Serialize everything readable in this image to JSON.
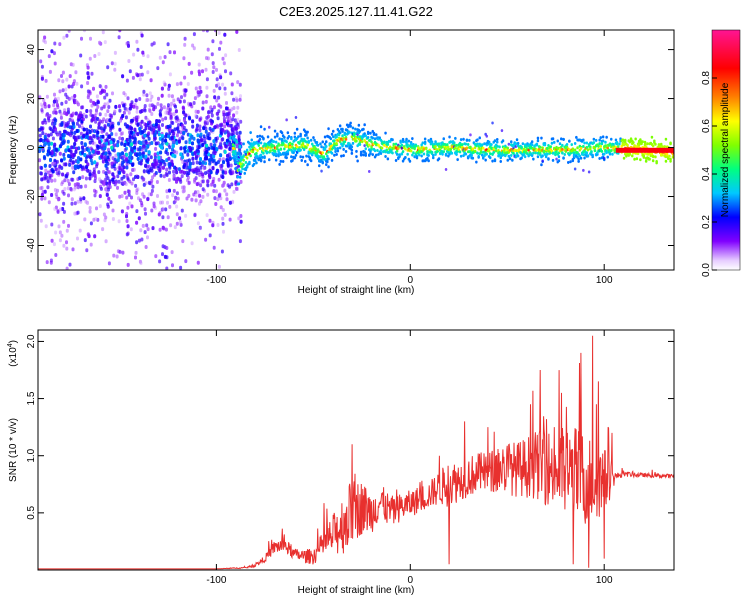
{
  "chart_data": [
    {
      "type": "heatmap",
      "title": "C2E3.2025.127.11.41.G22",
      "xlabel": "Height of straight line (km)",
      "ylabel": "Frequency (Hz)",
      "xlim": [
        -192,
        136
      ],
      "ylim": [
        -50,
        48
      ],
      "xticks": [
        -100,
        0,
        100
      ],
      "yticks": [
        -40,
        -20,
        0,
        20,
        40
      ],
      "xtick_labels": [
        "-100",
        "0",
        "100"
      ],
      "ytick_labels": [
        "-40",
        "-20",
        "0",
        "20",
        "40"
      ],
      "colorbar": {
        "label": "Normalized spectral amplitude",
        "range": [
          0,
          1
        ],
        "ticks": [
          0,
          0.2,
          0.4,
          0.6,
          0.8
        ],
        "tick_labels": [
          "0.0",
          "0.2",
          "0.4",
          "0.6",
          "0.8"
        ],
        "colormap": [
          "#ffffff",
          "#8000ff",
          "#0000ff",
          "#00c8ff",
          "#00ff80",
          "#80ff00",
          "#ffff00",
          "#ff8000",
          "#ff0000",
          "#ff1493"
        ]
      },
      "description_points": {
        "noise_region_x": [
          -192,
          -88
        ],
        "signal_track": [
          {
            "x": -90,
            "y": -9
          },
          {
            "x": -82,
            "y": -1
          },
          {
            "x": -70,
            "y": 0
          },
          {
            "x": -55,
            "y": 1
          },
          {
            "x": -45,
            "y": -3
          },
          {
            "x": -38,
            "y": 3
          },
          {
            "x": -30,
            "y": 4
          },
          {
            "x": -20,
            "y": 1
          },
          {
            "x": 0,
            "y": -1
          },
          {
            "x": 20,
            "y": 0
          },
          {
            "x": 40,
            "y": -1
          },
          {
            "x": 60,
            "y": -1
          },
          {
            "x": 80,
            "y": -1
          },
          {
            "x": 100,
            "y": 0
          },
          {
            "x": 136,
            "y": -2
          }
        ]
      }
    },
    {
      "type": "line",
      "title": "",
      "xlabel": "Height of straight line (km)",
      "ylabel": "SNR (10 * v/v)",
      "yscale_label": "(x10",
      "yscale_exp": "4",
      "yscale_close": ")",
      "xlim": [
        -192,
        136
      ],
      "ylim": [
        0,
        2.1
      ],
      "xticks": [
        -100,
        0,
        100
      ],
      "yticks": [
        0.5,
        1.0,
        1.5,
        2.0
      ],
      "xtick_labels": [
        "-100",
        "0",
        "100"
      ],
      "ytick_labels": [
        "0.5",
        "1.0",
        "1.5",
        "2.0"
      ],
      "color": "#e8302e",
      "envelope": {
        "x": [
          -192,
          -150,
          -100,
          -85,
          -80,
          -75,
          -70,
          -65,
          -60,
          -55,
          -50,
          -45,
          -40,
          -35,
          -30,
          -25,
          -20,
          -15,
          -10,
          -5,
          0,
          5,
          10,
          15,
          20,
          25,
          30,
          35,
          40,
          45,
          50,
          55,
          60,
          65,
          70,
          75,
          80,
          85,
          90,
          95,
          100,
          103,
          106,
          110,
          120,
          136
        ],
        "base": [
          0.01,
          0.01,
          0.01,
          0.02,
          0.04,
          0.1,
          0.2,
          0.22,
          0.14,
          0.12,
          0.12,
          0.22,
          0.3,
          0.4,
          0.5,
          0.55,
          0.5,
          0.6,
          0.5,
          0.55,
          0.58,
          0.62,
          0.66,
          0.72,
          0.75,
          0.78,
          0.82,
          0.85,
          0.85,
          0.88,
          0.9,
          0.88,
          0.9,
          0.92,
          0.9,
          0.88,
          0.85,
          0.82,
          0.8,
          0.78,
          0.78,
          0.8,
          0.82,
          0.84,
          0.83,
          0.82
        ],
        "amp": [
          0.0,
          0.0,
          0.0,
          0.01,
          0.02,
          0.05,
          0.1,
          0.12,
          0.08,
          0.1,
          0.12,
          0.2,
          0.3,
          0.45,
          0.5,
          0.4,
          0.3,
          0.25,
          0.25,
          0.2,
          0.2,
          0.2,
          0.2,
          0.25,
          0.35,
          0.3,
          0.3,
          0.3,
          0.3,
          0.35,
          0.4,
          0.4,
          0.45,
          0.5,
          0.55,
          0.6,
          0.7,
          0.75,
          0.7,
          0.6,
          0.5,
          0.3,
          0.05,
          0.04,
          0.03,
          0.03
        ]
      },
      "peaks": [
        {
          "x": -30,
          "y": 1.1
        },
        {
          "x": -18,
          "y": 0.62
        },
        {
          "x": -10,
          "y": 0.6
        },
        {
          "x": 15,
          "y": 1.0
        },
        {
          "x": 20,
          "y": 0.95
        },
        {
          "x": 28,
          "y": 1.3
        },
        {
          "x": 40,
          "y": 1.25
        },
        {
          "x": 62,
          "y": 1.45
        },
        {
          "x": 67,
          "y": 1.75
        },
        {
          "x": 78,
          "y": 1.55
        },
        {
          "x": 84,
          "y": 2.1
        },
        {
          "x": 88,
          "y": 1.9
        },
        {
          "x": 94,
          "y": 2.05
        },
        {
          "x": 97,
          "y": 1.65
        },
        {
          "x": 102,
          "y": 1.25
        },
        {
          "x": 104,
          "y": 1.2
        }
      ],
      "troughs": [
        {
          "x": 20,
          "y": 0.05
        },
        {
          "x": 84,
          "y": 0.05
        },
        {
          "x": 92,
          "y": 0.02
        },
        {
          "x": 100,
          "y": 0.1
        }
      ]
    }
  ]
}
